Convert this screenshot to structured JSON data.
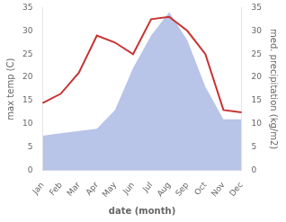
{
  "chart_data": {
    "type": "line",
    "categories": [
      "Jan",
      "Feb",
      "Mar",
      "Apr",
      "May",
      "Jun",
      "Jul",
      "Aug",
      "Sep",
      "Oct",
      "Nov",
      "Dec"
    ],
    "series": [
      {
        "type": "line",
        "color": "#c83232",
        "values": [
          14.5,
          16.5,
          21.0,
          29.0,
          27.5,
          25.0,
          32.5,
          33.0,
          30.0,
          25.0,
          13.0,
          12.5
        ]
      },
      {
        "type": "area",
        "color": "#b8c4e8",
        "axis": "y2",
        "values": [
          7.5,
          8.0,
          8.5,
          9.0,
          13.0,
          22.0,
          29.0,
          34.0,
          28.0,
          18.0,
          11.0,
          11.0
        ]
      }
    ],
    "xlabel": "date (month)",
    "ylabel": "max temp (C)",
    "y2label": "med. precipitation (kg/m2)",
    "ylim": [
      0,
      35
    ],
    "yticks": [
      0,
      5,
      10,
      15,
      20,
      25,
      30,
      35
    ],
    "y2lim": [
      0,
      35
    ],
    "y2ticks": [
      0,
      5,
      10,
      15,
      20,
      25,
      30,
      35
    ],
    "grid": false
  }
}
